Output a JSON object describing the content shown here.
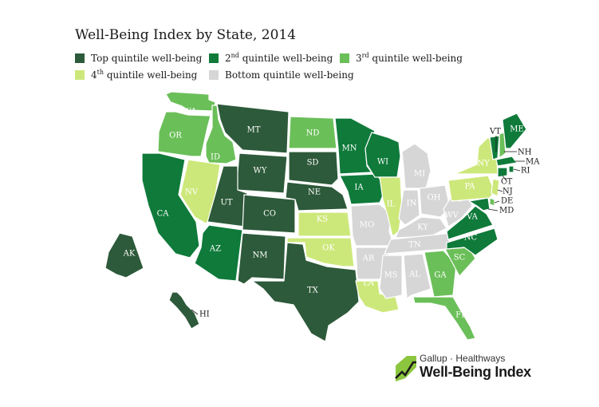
{
  "title": "Well-Being Index by State, 2014",
  "colors": {
    "top": "#2d5a3a",
    "second": "#0f7a3a",
    "third": "#6bbf59",
    "fourth": "#cde87a",
    "bottom": "#d6d6d6"
  },
  "legend": {
    "top": "Top quintile well-being",
    "second_num": "2",
    "second_sup": "nd",
    "second_rest": " quintile well-being",
    "third_num": "3",
    "third_sup": "rd",
    "third_rest": " quintile well-being",
    "fourth_num": "4",
    "fourth_sup": "th",
    "fourth_rest": " quintile well-being",
    "bottom": "Bottom quintile well-being"
  },
  "states": {
    "WA": {
      "label": "WA",
      "quintile": "third"
    },
    "OR": {
      "label": "OR",
      "quintile": "third"
    },
    "CA": {
      "label": "CA",
      "quintile": "second"
    },
    "ID": {
      "label": "ID",
      "quintile": "third"
    },
    "NV": {
      "label": "NV",
      "quintile": "fourth"
    },
    "MT": {
      "label": "MT",
      "quintile": "top"
    },
    "WY": {
      "label": "WY",
      "quintile": "top"
    },
    "UT": {
      "label": "UT",
      "quintile": "top"
    },
    "AZ": {
      "label": "AZ",
      "quintile": "second"
    },
    "CO": {
      "label": "CO",
      "quintile": "top"
    },
    "NM": {
      "label": "NM",
      "quintile": "top"
    },
    "ND": {
      "label": "ND",
      "quintile": "third"
    },
    "SD": {
      "label": "SD",
      "quintile": "top"
    },
    "NE": {
      "label": "NE",
      "quintile": "top"
    },
    "KS": {
      "label": "KS",
      "quintile": "fourth"
    },
    "OK": {
      "label": "OK",
      "quintile": "fourth"
    },
    "TX": {
      "label": "TX",
      "quintile": "top"
    },
    "MN": {
      "label": "MN",
      "quintile": "second"
    },
    "IA": {
      "label": "IA",
      "quintile": "second"
    },
    "MO": {
      "label": "MO",
      "quintile": "bottom"
    },
    "AR": {
      "label": "AR",
      "quintile": "bottom"
    },
    "LA": {
      "label": "LA",
      "quintile": "fourth"
    },
    "WI": {
      "label": "WI",
      "quintile": "second"
    },
    "IL": {
      "label": "IL",
      "quintile": "fourth"
    },
    "MI": {
      "label": "MI",
      "quintile": "bottom"
    },
    "IN": {
      "label": "IN",
      "quintile": "bottom"
    },
    "OH": {
      "label": "OH",
      "quintile": "bottom"
    },
    "KY": {
      "label": "KY",
      "quintile": "bottom"
    },
    "TN": {
      "label": "TN",
      "quintile": "bottom"
    },
    "MS": {
      "label": "MS",
      "quintile": "bottom"
    },
    "AL": {
      "label": "AL",
      "quintile": "bottom"
    },
    "GA": {
      "label": "GA",
      "quintile": "third"
    },
    "FL": {
      "label": "FL",
      "quintile": "third"
    },
    "SC": {
      "label": "SC",
      "quintile": "third"
    },
    "NC": {
      "label": "NC",
      "quintile": "second"
    },
    "VA": {
      "label": "VA",
      "quintile": "second"
    },
    "WV": {
      "label": "WV",
      "quintile": "bottom"
    },
    "PA": {
      "label": "PA",
      "quintile": "fourth"
    },
    "NY": {
      "label": "NY",
      "quintile": "fourth"
    },
    "VT": {
      "label": "VT",
      "quintile": "second"
    },
    "NH": {
      "label": "NH",
      "quintile": "third"
    },
    "ME": {
      "label": "ME",
      "quintile": "second"
    },
    "MA": {
      "label": "MA",
      "quintile": "second"
    },
    "RI": {
      "label": "RI",
      "quintile": "second"
    },
    "CT": {
      "label": "CT",
      "quintile": "second"
    },
    "NJ": {
      "label": "NJ",
      "quintile": "fourth"
    },
    "DE": {
      "label": "DE",
      "quintile": "third"
    },
    "MD": {
      "label": "MD",
      "quintile": "second"
    },
    "AK": {
      "label": "AK",
      "quintile": "top"
    },
    "HI": {
      "label": "HI",
      "quintile": "top"
    }
  },
  "brand": {
    "top": "Gallup · Healthways",
    "main": "Well-Being Index"
  }
}
